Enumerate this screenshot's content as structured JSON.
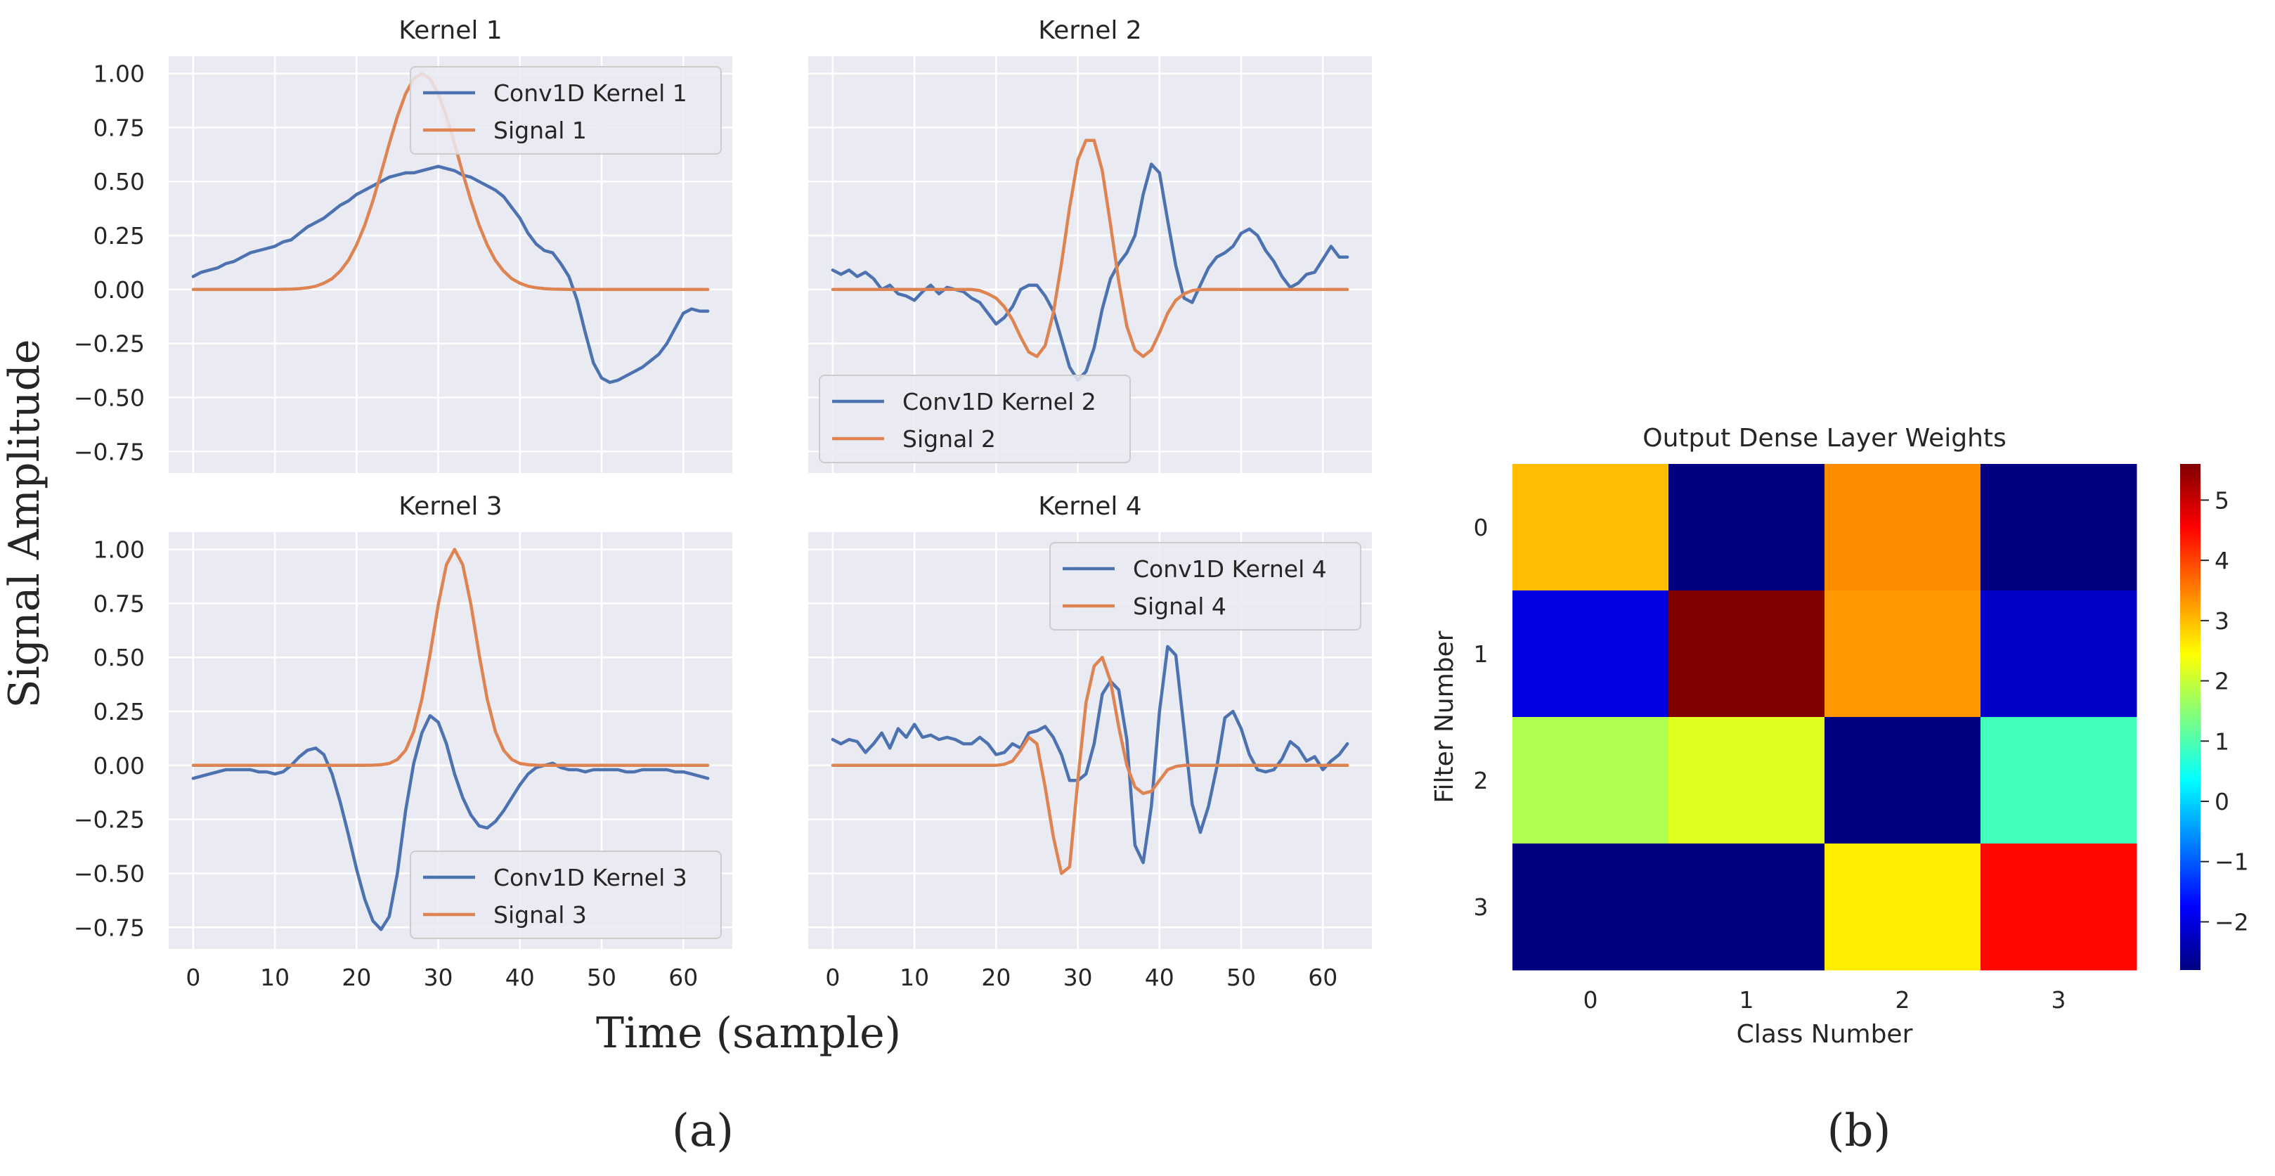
{
  "figure_labels": {
    "a": "(a)",
    "b": "(b)"
  },
  "shared_axes": {
    "ylabel": "Signal Amplitude",
    "xlabel": "Time (sample)"
  },
  "chart_data": [
    {
      "type": "line",
      "title": "Kernel 1",
      "xlim": [
        -3,
        66
      ],
      "ylim": [
        -0.85,
        1.08
      ],
      "xticks": [
        0,
        10,
        20,
        30,
        40,
        50,
        60
      ],
      "yticks": [
        -0.75,
        -0.5,
        -0.25,
        0.0,
        0.25,
        0.5,
        0.75,
        1.0
      ],
      "ytick_labels": [
        "−0.75",
        "−0.50",
        "−0.25",
        "0.00",
        "0.25",
        "0.50",
        "0.75",
        "1.00"
      ],
      "show_xticklabels": false,
      "show_yticklabels": true,
      "legend_position": "upper right",
      "series": [
        {
          "name": "Conv1D Kernel 1",
          "color": "#4c72b0",
          "values": [
            0.06,
            0.08,
            0.09,
            0.1,
            0.12,
            0.13,
            0.15,
            0.17,
            0.18,
            0.19,
            0.2,
            0.22,
            0.23,
            0.26,
            0.29,
            0.31,
            0.33,
            0.36,
            0.39,
            0.41,
            0.44,
            0.46,
            0.48,
            0.5,
            0.52,
            0.53,
            0.54,
            0.54,
            0.55,
            0.56,
            0.57,
            0.56,
            0.55,
            0.53,
            0.52,
            0.5,
            0.48,
            0.46,
            0.43,
            0.38,
            0.33,
            0.26,
            0.21,
            0.18,
            0.17,
            0.12,
            0.06,
            -0.05,
            -0.2,
            -0.34,
            -0.41,
            -0.43,
            -0.42,
            -0.4,
            -0.38,
            -0.36,
            -0.33,
            -0.3,
            -0.25,
            -0.18,
            -0.11,
            -0.09,
            -0.1,
            -0.1
          ]
        },
        {
          "name": "Signal 1",
          "color": "#dd8452",
          "gauss": {
            "center": 28,
            "amp": 1.0,
            "sigma": 4.5
          }
        }
      ]
    },
    {
      "type": "line",
      "title": "Kernel 2",
      "xlim": [
        -3,
        66
      ],
      "ylim": [
        -0.85,
        1.08
      ],
      "xticks": [
        0,
        10,
        20,
        30,
        40,
        50,
        60
      ],
      "yticks": [
        -0.75,
        -0.5,
        -0.25,
        0.0,
        0.25,
        0.5,
        0.75,
        1.0
      ],
      "show_xticklabels": false,
      "show_yticklabels": false,
      "legend_position": "lower left",
      "series": [
        {
          "name": "Conv1D Kernel 2",
          "color": "#4c72b0",
          "values": [
            0.09,
            0.07,
            0.09,
            0.06,
            0.08,
            0.05,
            0.0,
            0.02,
            -0.02,
            -0.03,
            -0.05,
            -0.01,
            0.02,
            -0.02,
            0.01,
            0.0,
            -0.01,
            -0.04,
            -0.06,
            -0.11,
            -0.16,
            -0.13,
            -0.08,
            0.0,
            0.02,
            0.02,
            -0.03,
            -0.1,
            -0.23,
            -0.36,
            -0.42,
            -0.38,
            -0.27,
            -0.09,
            0.05,
            0.12,
            0.17,
            0.25,
            0.44,
            0.58,
            0.54,
            0.32,
            0.11,
            -0.04,
            -0.06,
            0.02,
            0.1,
            0.15,
            0.17,
            0.2,
            0.26,
            0.28,
            0.25,
            0.18,
            0.13,
            0.06,
            0.01,
            0.03,
            0.07,
            0.08,
            0.14,
            0.2,
            0.15,
            0.15
          ]
        },
        {
          "name": "Signal 2",
          "color": "#dd8452",
          "values": [
            0,
            0,
            0,
            0,
            0,
            0,
            0,
            0,
            0,
            0,
            0,
            0,
            0,
            0,
            0,
            0,
            0,
            0,
            -0.005,
            -0.02,
            -0.04,
            -0.08,
            -0.14,
            -0.22,
            -0.29,
            -0.31,
            -0.26,
            -0.11,
            0.12,
            0.38,
            0.6,
            0.69,
            0.69,
            0.55,
            0.3,
            0.04,
            -0.17,
            -0.28,
            -0.31,
            -0.28,
            -0.2,
            -0.11,
            -0.05,
            -0.02,
            -0.005,
            0,
            0,
            0,
            0,
            0,
            0,
            0,
            0,
            0,
            0,
            0,
            0,
            0,
            0,
            0,
            0,
            0,
            0,
            0
          ]
        }
      ]
    },
    {
      "type": "line",
      "title": "Kernel 3",
      "xlim": [
        -3,
        66
      ],
      "ylim": [
        -0.85,
        1.08
      ],
      "xticks": [
        0,
        10,
        20,
        30,
        40,
        50,
        60
      ],
      "yticks": [
        -0.75,
        -0.5,
        -0.25,
        0.0,
        0.25,
        0.5,
        0.75,
        1.0
      ],
      "ytick_labels": [
        "−0.75",
        "−0.50",
        "−0.25",
        "0.00",
        "0.25",
        "0.50",
        "0.75",
        "1.00"
      ],
      "show_xticklabels": true,
      "show_yticklabels": true,
      "legend_position": "lower right",
      "series": [
        {
          "name": "Conv1D Kernel 3",
          "color": "#4c72b0",
          "values": [
            -0.06,
            -0.05,
            -0.04,
            -0.03,
            -0.02,
            -0.02,
            -0.02,
            -0.02,
            -0.03,
            -0.03,
            -0.04,
            -0.03,
            0.0,
            0.04,
            0.07,
            0.08,
            0.05,
            -0.04,
            -0.17,
            -0.32,
            -0.48,
            -0.62,
            -0.72,
            -0.76,
            -0.7,
            -0.5,
            -0.21,
            0.01,
            0.15,
            0.23,
            0.2,
            0.1,
            -0.04,
            -0.15,
            -0.23,
            -0.28,
            -0.29,
            -0.26,
            -0.21,
            -0.15,
            -0.09,
            -0.04,
            -0.01,
            0.0,
            0.01,
            -0.01,
            -0.02,
            -0.02,
            -0.03,
            -0.02,
            -0.02,
            -0.02,
            -0.02,
            -0.03,
            -0.03,
            -0.02,
            -0.02,
            -0.02,
            -0.02,
            -0.03,
            -0.03,
            -0.04,
            -0.05,
            -0.06
          ]
        },
        {
          "name": "Signal 3",
          "color": "#dd8452",
          "gauss": {
            "center": 32,
            "amp": 1.0,
            "sigma": 2.6
          }
        }
      ]
    },
    {
      "type": "line",
      "title": "Kernel 4",
      "xlim": [
        -3,
        66
      ],
      "ylim": [
        -0.85,
        1.08
      ],
      "xticks": [
        0,
        10,
        20,
        30,
        40,
        50,
        60
      ],
      "yticks": [
        -0.75,
        -0.5,
        -0.25,
        0.0,
        0.25,
        0.5,
        0.75,
        1.0
      ],
      "show_xticklabels": true,
      "show_yticklabels": false,
      "legend_position": "upper right",
      "series": [
        {
          "name": "Conv1D Kernel 4",
          "color": "#4c72b0",
          "values": [
            0.12,
            0.1,
            0.12,
            0.11,
            0.06,
            0.1,
            0.15,
            0.08,
            0.17,
            0.13,
            0.19,
            0.13,
            0.14,
            0.12,
            0.13,
            0.12,
            0.1,
            0.1,
            0.13,
            0.1,
            0.05,
            0.06,
            0.1,
            0.08,
            0.15,
            0.16,
            0.18,
            0.13,
            0.05,
            -0.07,
            -0.07,
            -0.04,
            0.1,
            0.33,
            0.39,
            0.35,
            0.12,
            -0.37,
            -0.45,
            -0.19,
            0.25,
            0.55,
            0.51,
            0.17,
            -0.18,
            -0.31,
            -0.19,
            -0.01,
            0.22,
            0.25,
            0.17,
            0.05,
            -0.02,
            -0.03,
            -0.02,
            0.03,
            0.11,
            0.08,
            0.02,
            0.04,
            -0.02,
            0.02,
            0.05,
            0.1
          ]
        },
        {
          "name": "Signal 4",
          "color": "#dd8452",
          "values": [
            0,
            0,
            0,
            0,
            0,
            0,
            0,
            0,
            0,
            0,
            0,
            0,
            0,
            0,
            0,
            0,
            0,
            0,
            0,
            0,
            0,
            0.005,
            0.02,
            0.07,
            0.13,
            0.1,
            -0.1,
            -0.33,
            -0.5,
            -0.47,
            -0.07,
            0.29,
            0.46,
            0.5,
            0.39,
            0.18,
            0.0,
            -0.1,
            -0.13,
            -0.12,
            -0.07,
            -0.02,
            -0.005,
            0,
            0,
            0,
            0,
            0,
            0,
            0,
            0,
            0,
            0,
            0,
            0,
            0,
            0,
            0,
            0,
            0,
            0,
            0,
            0,
            0
          ]
        }
      ]
    },
    {
      "type": "heatmap",
      "title": "Output Dense Layer Weights",
      "xlabel": "Class Number",
      "ylabel": "Filter Number",
      "x_categories": [
        "0",
        "1",
        "2",
        "3"
      ],
      "y_categories": [
        "0",
        "1",
        "2",
        "3"
      ],
      "values": [
        [
          3.0,
          -2.8,
          3.4,
          -2.8
        ],
        [
          -2.0,
          5.6,
          3.3,
          -2.2
        ],
        [
          1.8,
          2.2,
          -2.8,
          0.9
        ],
        [
          -2.8,
          -2.8,
          2.6,
          4.5
        ]
      ],
      "vmin": -2.8,
      "vmax": 5.6,
      "colormap": "jet",
      "colorbar_ticks": [
        -2,
        -1,
        0,
        1,
        2,
        3,
        4,
        5
      ],
      "colorbar_tick_labels": [
        "−2",
        "−1",
        "0",
        "1",
        "2",
        "3",
        "4",
        "5"
      ]
    }
  ],
  "colors": {
    "panel_bg": "#eaeaf2",
    "grid": "#ffffff",
    "text": "#262626",
    "legend_bg": "#eaeaf2",
    "legend_edge": "#cccccc"
  }
}
